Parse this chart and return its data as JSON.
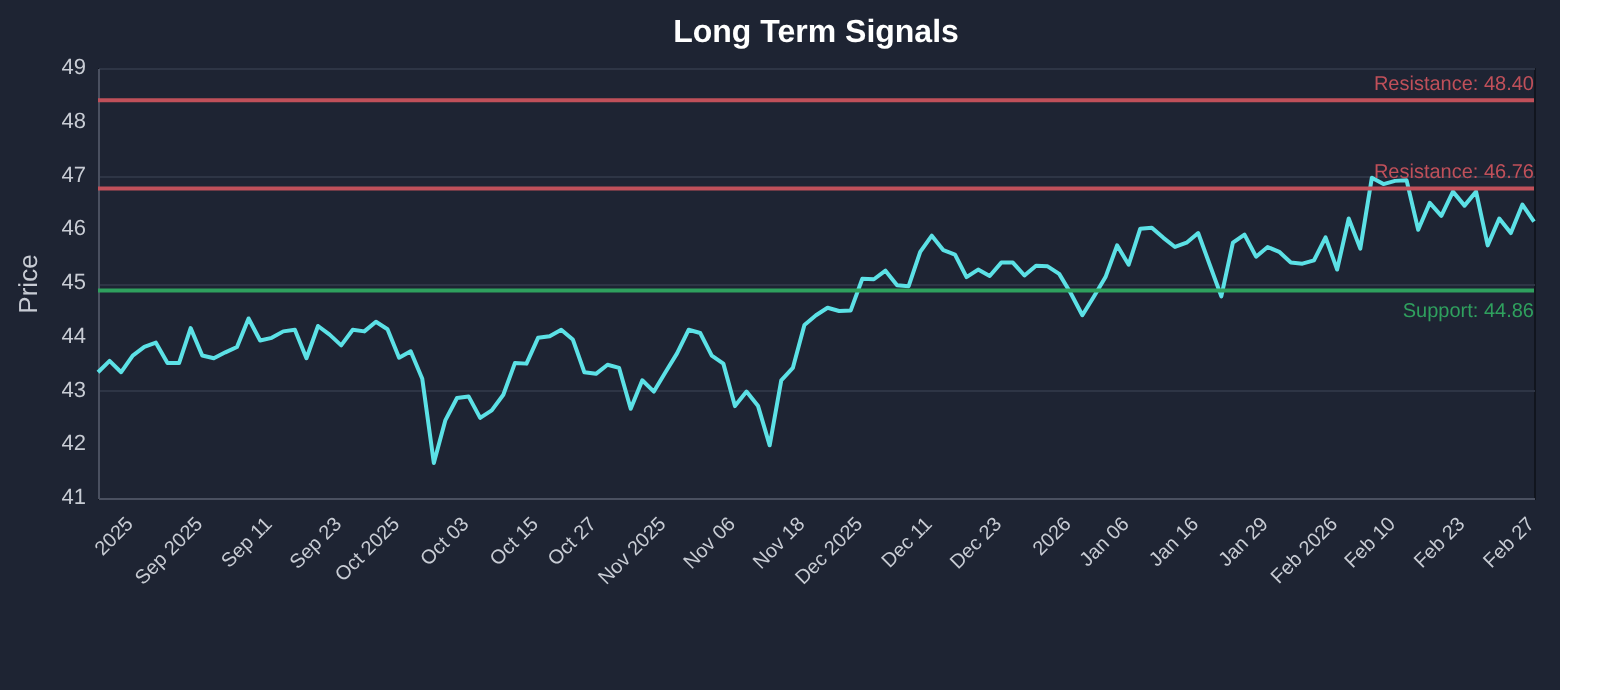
{
  "chart_data": {
    "type": "line",
    "title": "Long Term Signals",
    "ylabel": "Price",
    "categories": [
      null,
      null,
      null,
      "2025",
      null,
      null,
      null,
      null,
      null,
      "Sep 2025",
      null,
      null,
      null,
      null,
      null,
      "Sep 11",
      null,
      null,
      null,
      null,
      null,
      "Sep 23",
      null,
      null,
      null,
      null,
      "Oct 2025",
      null,
      null,
      null,
      null,
      null,
      "Oct 03",
      null,
      null,
      null,
      null,
      null,
      "Oct 15",
      null,
      null,
      null,
      null,
      "Oct 27",
      null,
      null,
      null,
      null,
      null,
      "Nov 2025",
      null,
      null,
      null,
      null,
      null,
      "Nov 06",
      null,
      null,
      null,
      null,
      null,
      "Nov 18",
      null,
      null,
      null,
      null,
      "Dec 2025",
      null,
      null,
      null,
      null,
      null,
      "Dec 11",
      null,
      null,
      null,
      null,
      null,
      "Dec 23",
      null,
      null,
      null,
      null,
      null,
      "2026",
      null,
      null,
      null,
      null,
      "Jan 06",
      null,
      null,
      null,
      null,
      null,
      "Jan 16",
      null,
      null,
      null,
      null,
      null,
      "Jan 29",
      null,
      null,
      null,
      null,
      null,
      "Feb 2026",
      null,
      null,
      null,
      null,
      "Feb 10",
      null,
      null,
      null,
      null,
      null,
      "Feb 23",
      null,
      null,
      null,
      null,
      null,
      "Feb 27"
    ],
    "series": [
      {
        "color": "#5ce1e6",
        "values": [
          43.34,
          43.55,
          43.34,
          43.65,
          43.81,
          43.89,
          43.51,
          43.51,
          44.16,
          43.65,
          43.6,
          43.71,
          43.81,
          44.34,
          43.93,
          43.98,
          44.1,
          44.13,
          43.6,
          44.2,
          44.04,
          43.84,
          44.13,
          44.1,
          44.28,
          44.14,
          43.61,
          43.73,
          43.22,
          41.65,
          42.45,
          42.86,
          42.89,
          42.49,
          42.63,
          42.92,
          43.51,
          43.5,
          43.98,
          44.01,
          44.13,
          43.95,
          43.34,
          43.31,
          43.48,
          43.42,
          42.66,
          43.19,
          42.98,
          43.34,
          43.69,
          44.13,
          44.07,
          43.65,
          43.5,
          42.71,
          42.98,
          42.71,
          41.98,
          43.19,
          43.42,
          44.22,
          44.4,
          44.54,
          44.48,
          44.49,
          45.08,
          45.07,
          45.23,
          44.96,
          44.94,
          45.58,
          45.88,
          45.61,
          45.53,
          45.11,
          45.25,
          45.13,
          45.38,
          45.38,
          45.14,
          45.32,
          45.31,
          45.17,
          44.81,
          44.4,
          44.75,
          45.11,
          45.7,
          45.34,
          46.01,
          46.03,
          45.84,
          45.67,
          45.75,
          45.93,
          45.34,
          44.75,
          45.75,
          45.9,
          45.49,
          45.67,
          45.58,
          45.38,
          45.36,
          45.42,
          45.85,
          45.25,
          46.2,
          45.64,
          46.96,
          46.84,
          46.9,
          46.91,
          45.99,
          46.49,
          46.25,
          46.7,
          46.44,
          46.7,
          45.7,
          46.2,
          45.93,
          46.46,
          46.14
        ]
      }
    ],
    "ylim": [
      41,
      49
    ],
    "yticks": [
      41,
      42,
      43,
      44,
      45,
      46,
      47,
      48,
      49
    ],
    "grid": "y",
    "ref_lines": [
      {
        "axis": "y",
        "value": 48.4,
        "label": "Resistance: 48.40",
        "color": "#c0505a"
      },
      {
        "axis": "y",
        "value": 46.76,
        "label": "Resistance: 46.76",
        "color": "#c0505a"
      },
      {
        "axis": "y",
        "value": 44.86,
        "label": "Support: 44.86",
        "color": "#2fa05e"
      }
    ]
  }
}
